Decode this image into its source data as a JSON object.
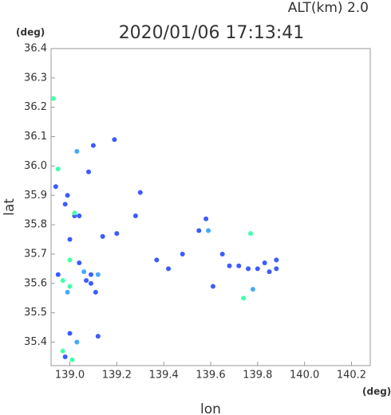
{
  "chart_data": {
    "type": "scatter",
    "title": "2020/01/06 17:13:41",
    "subtitle": "ALT(km) 2.0",
    "x_unit": "(deg)",
    "y_unit": "(deg)",
    "xlabel": "lon",
    "ylabel": "lat",
    "xlim": [
      138.92,
      140.28
    ],
    "ylim": [
      35.32,
      36.4
    ],
    "xticks": [
      {
        "value": 139,
        "label": "139.0"
      },
      139.2,
      139.4,
      139.6,
      139.8,
      {
        "value": 140,
        "label": "140.0"
      },
      140.2
    ],
    "yticks": [
      36.4,
      36.3,
      36.2,
      36.1,
      {
        "value": 36,
        "label": "36.0"
      },
      35.9,
      35.8,
      35.7,
      35.6,
      35.5,
      35.4
    ],
    "series": [
      {
        "color": "#3c5cff",
        "x": [
          138.94,
          138.99,
          138.98,
          139.02,
          139.04,
          139.0,
          139.1,
          139.08,
          139.19,
          139.14,
          139.2,
          139.28,
          139.3,
          139.37,
          139.42,
          139.48,
          139.55,
          139.58,
          139.61,
          139.65,
          139.68,
          139.72,
          139.76,
          139.8,
          139.83,
          139.88,
          139.88,
          139.85,
          139.04,
          139.07,
          139.09,
          139.11,
          139.09,
          138.95,
          139.0,
          139.12,
          138.98
        ],
        "values": [
          35.93,
          35.9,
          35.87,
          35.83,
          35.83,
          35.75,
          36.07,
          35.98,
          36.09,
          35.76,
          35.77,
          35.83,
          35.91,
          35.68,
          35.65,
          35.7,
          35.78,
          35.82,
          35.59,
          35.7,
          35.66,
          35.66,
          35.65,
          35.65,
          35.67,
          35.68,
          35.65,
          35.64,
          35.67,
          35.61,
          35.6,
          35.57,
          35.63,
          35.63,
          35.43,
          35.42,
          35.35
        ]
      },
      {
        "color": "#44aaff",
        "x": [
          139.03,
          139.03,
          139.12,
          139.59,
          139.78,
          139.06,
          138.99
        ],
        "values": [
          35.4,
          36.05,
          35.63,
          35.78,
          35.58,
          35.64,
          35.57
        ]
      },
      {
        "color": "#44ffaa",
        "x": [
          138.93,
          138.95,
          139.0,
          138.97,
          139.0,
          139.01,
          138.97,
          139.74,
          139.02,
          139.77
        ],
        "values": [
          36.23,
          35.99,
          35.68,
          35.61,
          35.59,
          35.34,
          35.37,
          35.55,
          35.84,
          35.77
        ]
      }
    ]
  }
}
